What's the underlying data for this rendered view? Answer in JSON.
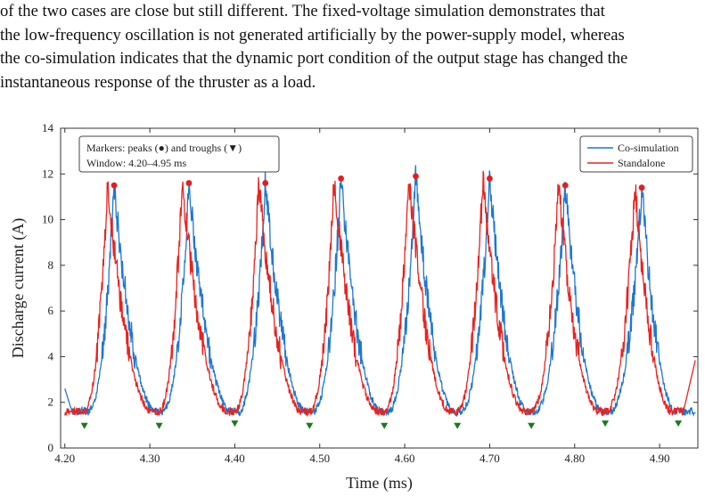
{
  "paragraph": {
    "lines": [
      "of the two cases are close but still different. The fixed-voltage simulation demonstrates that",
      "the low-frequency oscillation is not generated artificially by the power-supply model, whereas",
      "the co-simulation indicates that the dynamic port condition of the output stage has changed the",
      "instantaneous response of the thruster as a load."
    ]
  },
  "chart_data": {
    "type": "line",
    "xlabel": "Time (ms)",
    "ylabel": "Discharge current (A)",
    "xlim": [
      4.195,
      4.945
    ],
    "ylim": [
      0,
      14
    ],
    "xticks": [
      "4.20",
      "4.30",
      "4.40",
      "4.50",
      "4.60",
      "4.70",
      "4.80",
      "4.90"
    ],
    "yticks": [
      "0",
      "2",
      "4",
      "6",
      "8",
      "10",
      "12",
      "14"
    ],
    "grid": false,
    "legend_position": "top-right",
    "annotation": {
      "line1": "Markers: peaks (●) and troughs (▼)",
      "line2": "Window: 4.20–4.95 ms"
    },
    "series": [
      {
        "name": "Co-simulation",
        "color": "#1f77d0",
        "peak_offset": 0.0
      },
      {
        "name": "Standalone",
        "color": "#e8231e",
        "peak_offset": -0.008
      }
    ],
    "peaks": {
      "x": [
        4.258,
        4.346,
        4.436,
        4.525,
        4.613,
        4.7,
        4.789,
        4.879
      ],
      "y": [
        11.5,
        11.6,
        11.6,
        11.8,
        11.9,
        11.8,
        11.5,
        11.4
      ],
      "color": "#e81c1c"
    },
    "troughs": {
      "x": [
        4.223,
        4.311,
        4.4,
        4.488,
        4.576,
        4.662,
        4.749,
        4.836,
        4.922
      ],
      "y": [
        1.2,
        1.2,
        1.3,
        1.2,
        1.2,
        1.2,
        1.2,
        1.3,
        1.3
      ],
      "color": "#1a7a1a"
    }
  }
}
